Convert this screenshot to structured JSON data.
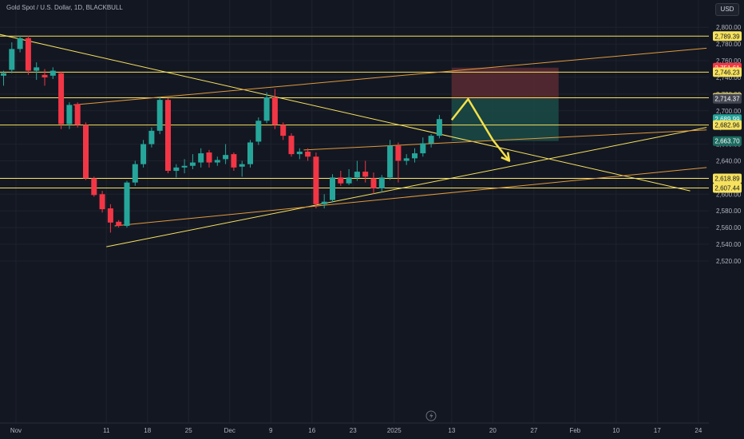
{
  "header": {
    "symbol_line": "Gold Spot / U.S. Dollar, 1D, BLACKBULL",
    "currency": "USD"
  },
  "colors": {
    "background": "#131722",
    "grid": "#1e222d",
    "up": "#26a69a",
    "down": "#f23645",
    "level_line": "#f7e25e",
    "trend_line_orange": "#e09a3c",
    "projection_arrow": "#f5e04a",
    "stop_zone": "#5a2a33",
    "target_zone": "#1b4b47"
  },
  "chart_data": {
    "type": "candlestick",
    "instrument": "Gold Spot / U.S. Dollar",
    "timeframe": "1D",
    "broker": "BLACKBULL",
    "y_axis": {
      "ylim": [
        2510,
        2818
      ],
      "ticks": [
        2520,
        2540,
        2560,
        2580,
        2600,
        2620,
        2640,
        2660,
        2680,
        2700,
        2720,
        2740,
        2760,
        2780,
        2800
      ],
      "tick_labels": [
        "2,520.00",
        "2,540.00",
        "2,560.00",
        "2,580.00",
        "2,600.00",
        "2,620.00",
        "2,640.00",
        "2,660.00",
        "2,680.00",
        "2,700.00",
        "2,720.00",
        "2,740.00",
        "2,760.00",
        "2,780.00",
        "2,800.00"
      ]
    },
    "x_axis": {
      "tick_labels": [
        "Nov",
        "11",
        "18",
        "25",
        "Dec",
        "9",
        "16",
        "23",
        "2025",
        "13",
        "20",
        "27",
        "Feb",
        "10",
        "17",
        "24"
      ],
      "tick_bars": [
        1.5,
        12.5,
        17.5,
        22.5,
        27.5,
        32.5,
        37.5,
        42.5,
        47.5,
        54.5,
        59.5,
        64.5,
        69.5,
        74.5,
        79.5,
        84.5
      ],
      "grid": true
    },
    "candles": [
      {
        "bar": 0,
        "o": 2742,
        "h": 2748,
        "l": 2730,
        "c": 2745
      },
      {
        "bar": 1,
        "o": 2749,
        "h": 2782,
        "l": 2745,
        "c": 2774
      },
      {
        "bar": 2,
        "o": 2774,
        "h": 2790,
        "l": 2770,
        "c": 2787
      },
      {
        "bar": 3,
        "o": 2787,
        "h": 2790,
        "l": 2743,
        "c": 2748
      },
      {
        "bar": 4,
        "o": 2748,
        "h": 2758,
        "l": 2737,
        "c": 2752
      },
      {
        "bar": 5,
        "o": 2743,
        "h": 2750,
        "l": 2730,
        "c": 2740
      },
      {
        "bar": 6,
        "o": 2742,
        "h": 2752,
        "l": 2738,
        "c": 2748
      },
      {
        "bar": 7,
        "o": 2745,
        "h": 2747,
        "l": 2678,
        "c": 2684
      },
      {
        "bar": 8,
        "o": 2684,
        "h": 2710,
        "l": 2678,
        "c": 2707
      },
      {
        "bar": 9,
        "o": 2708,
        "h": 2710,
        "l": 2680,
        "c": 2683
      },
      {
        "bar": 10,
        "o": 2683,
        "h": 2686,
        "l": 2617,
        "c": 2619
      },
      {
        "bar": 11,
        "o": 2619,
        "h": 2621,
        "l": 2597,
        "c": 2599
      },
      {
        "bar": 12,
        "o": 2600,
        "h": 2604,
        "l": 2578,
        "c": 2582
      },
      {
        "bar": 13,
        "o": 2583,
        "h": 2588,
        "l": 2554,
        "c": 2566
      },
      {
        "bar": 14,
        "o": 2567,
        "h": 2569,
        "l": 2560,
        "c": 2562
      },
      {
        "bar": 15,
        "o": 2562,
        "h": 2616,
        "l": 2560,
        "c": 2614
      },
      {
        "bar": 16,
        "o": 2614,
        "h": 2640,
        "l": 2610,
        "c": 2636
      },
      {
        "bar": 17,
        "o": 2636,
        "h": 2665,
        "l": 2632,
        "c": 2660
      },
      {
        "bar": 18,
        "o": 2660,
        "h": 2680,
        "l": 2656,
        "c": 2676
      },
      {
        "bar": 19,
        "o": 2676,
        "h": 2717,
        "l": 2672,
        "c": 2713
      },
      {
        "bar": 20,
        "o": 2713,
        "h": 2715,
        "l": 2625,
        "c": 2628
      },
      {
        "bar": 21,
        "o": 2628,
        "h": 2636,
        "l": 2620,
        "c": 2632
      },
      {
        "bar": 22,
        "o": 2632,
        "h": 2642,
        "l": 2625,
        "c": 2634
      },
      {
        "bar": 23,
        "o": 2634,
        "h": 2648,
        "l": 2630,
        "c": 2638
      },
      {
        "bar": 24,
        "o": 2638,
        "h": 2655,
        "l": 2632,
        "c": 2649
      },
      {
        "bar": 25,
        "o": 2650,
        "h": 2653,
        "l": 2632,
        "c": 2638
      },
      {
        "bar": 26,
        "o": 2638,
        "h": 2645,
        "l": 2634,
        "c": 2641
      },
      {
        "bar": 27,
        "o": 2642,
        "h": 2660,
        "l": 2636,
        "c": 2647
      },
      {
        "bar": 28,
        "o": 2648,
        "h": 2650,
        "l": 2628,
        "c": 2632
      },
      {
        "bar": 29,
        "o": 2633,
        "h": 2640,
        "l": 2621,
        "c": 2636
      },
      {
        "bar": 30,
        "o": 2636,
        "h": 2665,
        "l": 2632,
        "c": 2662
      },
      {
        "bar": 31,
        "o": 2663,
        "h": 2692,
        "l": 2659,
        "c": 2688
      },
      {
        "bar": 32,
        "o": 2688,
        "h": 2722,
        "l": 2685,
        "c": 2716
      },
      {
        "bar": 33,
        "o": 2716,
        "h": 2726,
        "l": 2678,
        "c": 2683
      },
      {
        "bar": 34,
        "o": 2683,
        "h": 2686,
        "l": 2665,
        "c": 2670
      },
      {
        "bar": 35,
        "o": 2670,
        "h": 2673,
        "l": 2645,
        "c": 2648
      },
      {
        "bar": 36,
        "o": 2648,
        "h": 2655,
        "l": 2642,
        "c": 2651
      },
      {
        "bar": 37,
        "o": 2651,
        "h": 2655,
        "l": 2640,
        "c": 2645
      },
      {
        "bar": 38,
        "o": 2645,
        "h": 2650,
        "l": 2583,
        "c": 2588
      },
      {
        "bar": 39,
        "o": 2588,
        "h": 2600,
        "l": 2583,
        "c": 2591
      },
      {
        "bar": 40,
        "o": 2593,
        "h": 2624,
        "l": 2590,
        "c": 2620
      },
      {
        "bar": 41,
        "o": 2620,
        "h": 2628,
        "l": 2610,
        "c": 2613
      },
      {
        "bar": 42,
        "o": 2613,
        "h": 2630,
        "l": 2611,
        "c": 2620
      },
      {
        "bar": 43,
        "o": 2620,
        "h": 2640,
        "l": 2616,
        "c": 2627
      },
      {
        "bar": 44,
        "o": 2627,
        "h": 2640,
        "l": 2614,
        "c": 2621
      },
      {
        "bar": 45,
        "o": 2619,
        "h": 2626,
        "l": 2600,
        "c": 2607
      },
      {
        "bar": 46,
        "o": 2607,
        "h": 2623,
        "l": 2602,
        "c": 2620
      },
      {
        "bar": 47,
        "o": 2620,
        "h": 2665,
        "l": 2617,
        "c": 2658
      },
      {
        "bar": 48,
        "o": 2658,
        "h": 2662,
        "l": 2614,
        "c": 2640
      },
      {
        "bar": 49,
        "o": 2640,
        "h": 2648,
        "l": 2635,
        "c": 2643
      },
      {
        "bar": 50,
        "o": 2643,
        "h": 2655,
        "l": 2638,
        "c": 2649
      },
      {
        "bar": 51,
        "o": 2649,
        "h": 2668,
        "l": 2645,
        "c": 2661
      },
      {
        "bar": 52,
        "o": 2661,
        "h": 2672,
        "l": 2656,
        "c": 2670
      },
      {
        "bar": 53,
        "o": 2670,
        "h": 2695,
        "l": 2667,
        "c": 2690
      }
    ],
    "horizontal_levels": [
      2789.39,
      2746.23,
      2715.52,
      2682.96,
      2618.89,
      2607.44
    ],
    "price_labels": [
      {
        "text": "2,789.39",
        "value": 2789.39,
        "style": "level"
      },
      {
        "text": "2,751.61",
        "value": 2751.61,
        "style": "stop"
      },
      {
        "text": "2,746.23",
        "value": 2746.23,
        "style": "level"
      },
      {
        "text": "2,715.52",
        "value": 2715.52,
        "style": "level"
      },
      {
        "text": "2,714.37",
        "value": 2714.37,
        "style": "neutral"
      },
      {
        "text": "2,689.99",
        "value": 2689.99,
        "style": "last"
      },
      {
        "text": "2,682.96",
        "value": 2682.96,
        "style": "level"
      },
      {
        "text": "2,663.70",
        "value": 2663.7,
        "style": "target"
      },
      {
        "text": "2,618.89",
        "value": 2618.89,
        "style": "level"
      },
      {
        "text": "2,607.44",
        "value": 2607.44,
        "style": "level"
      }
    ],
    "trend_lines": [
      {
        "from": [
          -2.5,
          2796
        ],
        "to": [
          83.5,
          2604
        ],
        "color": "yellow"
      },
      {
        "from": [
          12.5,
          2537
        ],
        "to": [
          85.5,
          2680
        ],
        "color": "yellow"
      },
      {
        "from": [
          8.5,
          2707
        ],
        "to": [
          85.5,
          2775
        ],
        "color": "orange"
      },
      {
        "from": [
          13.5,
          2562
        ],
        "to": [
          85.5,
          2632
        ],
        "color": "orange"
      },
      {
        "from": [
          36.5,
          2653
        ],
        "to": [
          85.5,
          2677
        ],
        "color": "orange"
      }
    ],
    "position_tool": {
      "direction": "short",
      "bar_start": 54.5,
      "bar_end": 67.5,
      "entry": 2714.37,
      "stop": 2751.61,
      "target": 2663.7
    },
    "projection_arrow": [
      [
        54.5,
        2689
      ],
      [
        56.5,
        2714
      ],
      [
        59.5,
        2665
      ],
      [
        61.5,
        2640
      ]
    ]
  }
}
